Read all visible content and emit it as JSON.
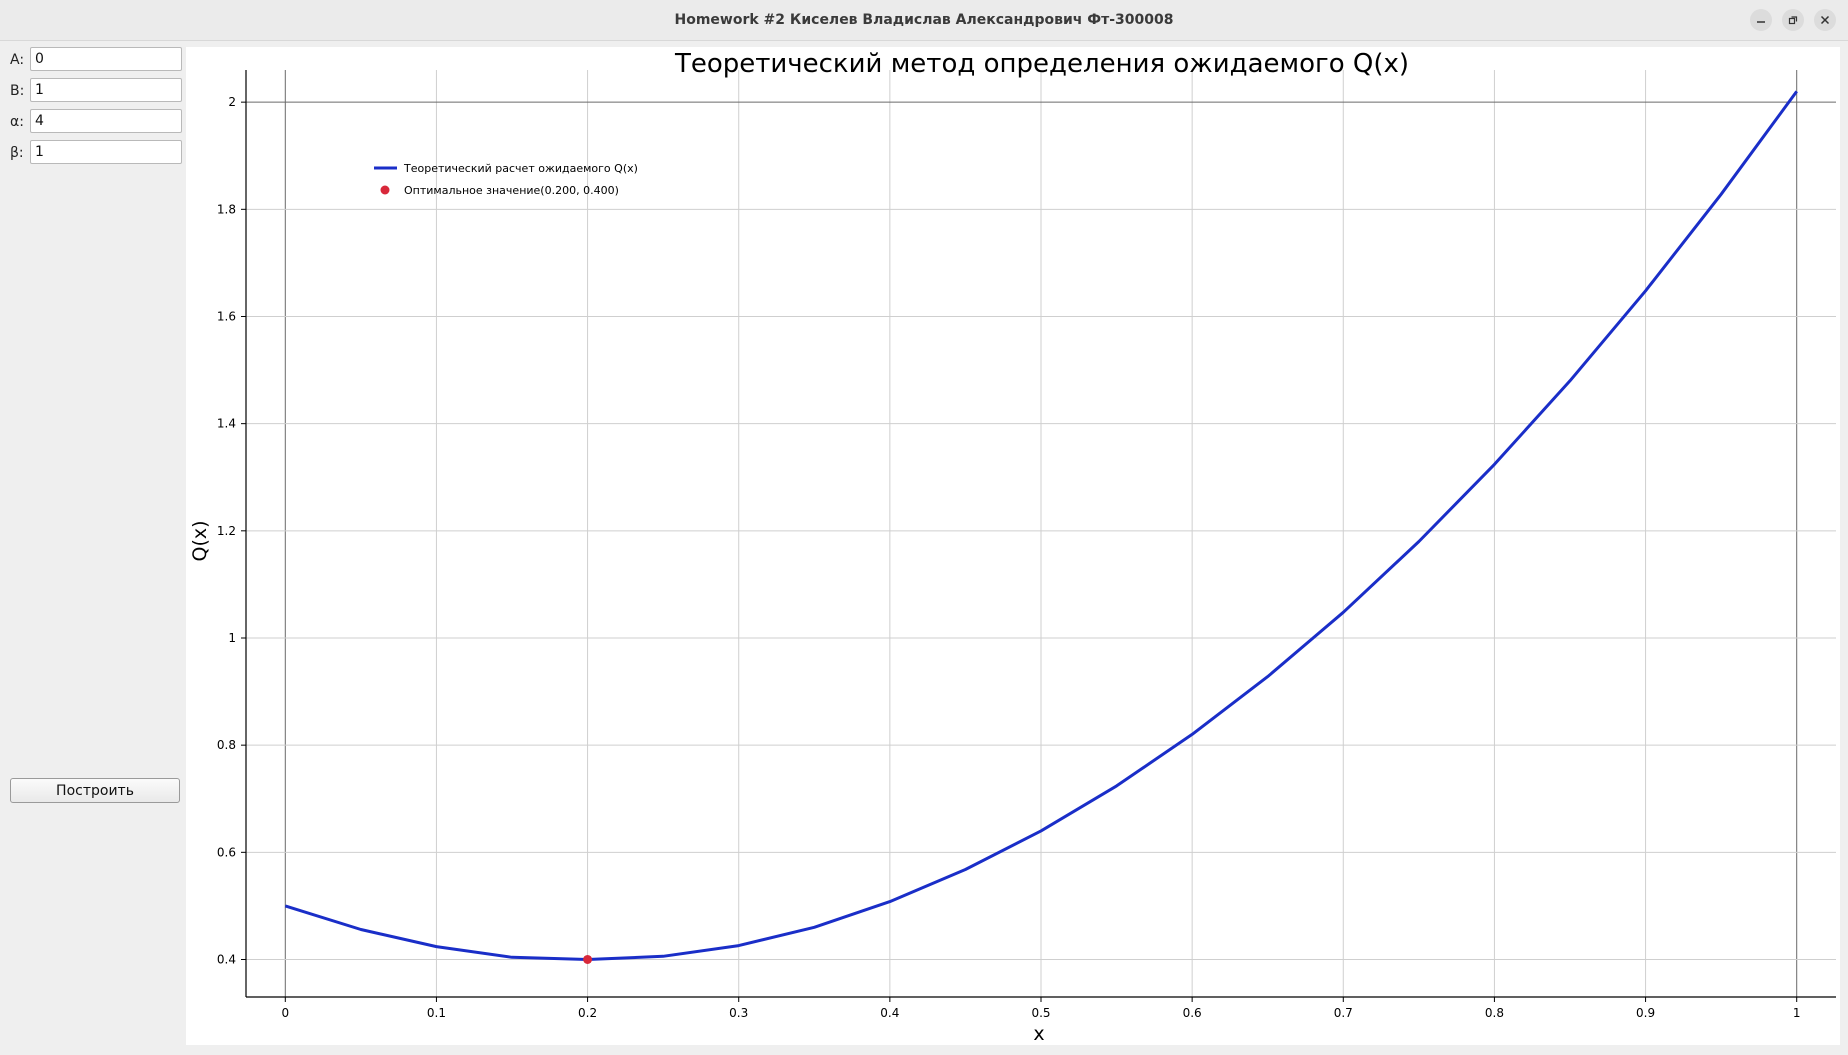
{
  "window": {
    "title": "Homework #2 Киселев Владислав Александрович Фт-300008",
    "buttons": {
      "minimize": "minimize-icon",
      "restore": "restore-icon",
      "close": "close-icon"
    }
  },
  "params": {
    "a_label": "A:",
    "a_value": "0",
    "b_label": "B:",
    "b_value": "1",
    "alpha_label": "α:",
    "alpha_value": "4",
    "beta_label": "β:",
    "beta_value": "1",
    "build_button": "Построить"
  },
  "colors": {
    "curve": "#1a2ec8",
    "optimum": "#d8283a",
    "grid": "#cfcfcf",
    "axis": "#000000"
  },
  "chart_data": {
    "type": "line",
    "title": "Теоретический метод определения ожидаемого Q(x)",
    "xlabel": "x",
    "ylabel": "Q(x)",
    "xlim": [
      -0.026,
      1.026
    ],
    "ylim": [
      0.33,
      2.06
    ],
    "grid": true,
    "legend_position": "top-left",
    "x_ticks": [
      "0",
      "0.1",
      "0.2",
      "0.3",
      "0.4",
      "0.5",
      "0.6",
      "0.7",
      "0.8",
      "0.9",
      "1"
    ],
    "y_ticks": [
      "0.4",
      "0.6",
      "0.8",
      "1",
      "1.2",
      "1.4",
      "1.6",
      "1.8",
      "2"
    ],
    "series": [
      {
        "name": "Теоретический расчет ожидаемого Q(x)",
        "x": [
          0,
          0.05,
          0.1,
          0.15,
          0.2,
          0.25,
          0.3,
          0.35,
          0.4,
          0.45,
          0.5,
          0.55,
          0.6,
          0.65,
          0.7,
          0.75,
          0.8,
          0.85,
          0.9,
          0.95,
          1
        ],
        "y": [
          0.5,
          0.456,
          0.424,
          0.404,
          0.4,
          0.406,
          0.426,
          0.46,
          0.508,
          0.568,
          0.64,
          0.724,
          0.82,
          0.928,
          1.048,
          1.18,
          1.324,
          1.48,
          1.648,
          1.828,
          2.02
        ]
      },
      {
        "name": "Оптимальное значение(0.200, 0.400)",
        "points": [
          {
            "x": 0.2,
            "y": 0.4
          }
        ]
      }
    ]
  }
}
